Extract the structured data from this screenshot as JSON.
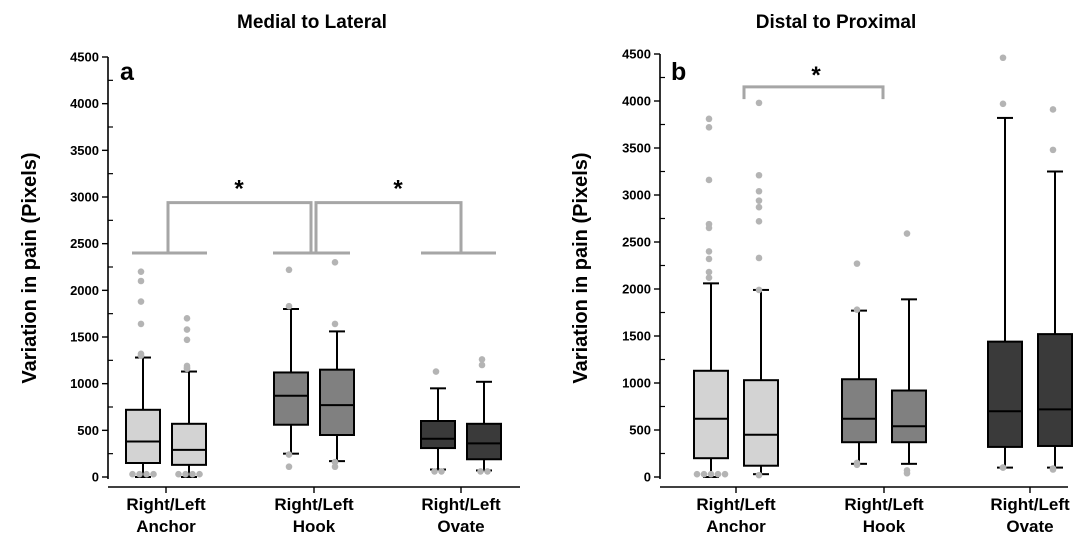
{
  "colors": {
    "light": "#d3d3d3",
    "medium": "#808080",
    "dark": "#3a3a3a",
    "outlier": "#b4b4b4",
    "bracket": "#a6a6a6",
    "axis": "#000000"
  },
  "chart_data": [
    {
      "type": "box",
      "panel_letter": "a",
      "title": "Medial to Lateral",
      "ylabel": "Variation in pain (Pixels)",
      "ylim": [
        0,
        4500
      ],
      "yticks": [
        0,
        500,
        1000,
        1500,
        2000,
        2500,
        3000,
        3500,
        4000,
        4500
      ],
      "categories": [
        {
          "line1": "Right/Left",
          "line2": "Anchor"
        },
        {
          "line1": "Right/Left",
          "line2": "Hook"
        },
        {
          "line1": "Right/Left",
          "line2": "Ovate"
        }
      ],
      "boxes": [
        {
          "group": 0,
          "side": "Right",
          "shade": "light",
          "whisker_low": 0,
          "q1": 150,
          "median": 380,
          "q3": 720,
          "whisker_high": 1280,
          "outliers": [
            2200,
            2100,
            1880,
            1640,
            1320,
            1300,
            30,
            30,
            30,
            30
          ]
        },
        {
          "group": 0,
          "side": "Left",
          "shade": "light",
          "whisker_low": 0,
          "q1": 130,
          "median": 290,
          "q3": 570,
          "whisker_high": 1130,
          "outliers": [
            1700,
            1580,
            1470,
            1190,
            1170,
            1160,
            30,
            30,
            30,
            30
          ]
        },
        {
          "group": 1,
          "side": "Right",
          "shade": "medium",
          "whisker_low": 250,
          "q1": 560,
          "median": 870,
          "q3": 1120,
          "whisker_high": 1800,
          "outliers": [
            2220,
            1830,
            240,
            110
          ]
        },
        {
          "group": 1,
          "side": "Left",
          "shade": "medium",
          "whisker_low": 170,
          "q1": 450,
          "median": 770,
          "q3": 1150,
          "whisker_high": 1560,
          "outliers": [
            2300,
            1640,
            160,
            110
          ]
        },
        {
          "group": 2,
          "side": "Right",
          "shade": "dark",
          "whisker_low": 80,
          "q1": 310,
          "median": 410,
          "q3": 600,
          "whisker_high": 950,
          "outliers": [
            1130,
            60,
            60
          ]
        },
        {
          "group": 2,
          "side": "Left",
          "shade": "dark",
          "whisker_low": 70,
          "q1": 190,
          "median": 360,
          "q3": 570,
          "whisker_high": 1020,
          "outliers": [
            1260,
            1200,
            60,
            60
          ]
        }
      ],
      "significance": [
        {
          "label": "*",
          "from_group": 0,
          "to_group": 1
        },
        {
          "label": "*",
          "from_group": 1,
          "to_group": 2
        }
      ]
    },
    {
      "type": "box",
      "panel_letter": "b",
      "title": "Distal to Proximal",
      "ylabel": "Variation in pain (Pixels)",
      "ylim": [
        0,
        4500
      ],
      "yticks": [
        0,
        500,
        1000,
        1500,
        2000,
        2500,
        3000,
        3500,
        4000,
        4500
      ],
      "categories": [
        {
          "line1": "Right/Left",
          "line2": "Anchor"
        },
        {
          "line1": "Right/Left",
          "line2": "Hook"
        },
        {
          "line1": "Right/Left",
          "line2": "Ovate"
        }
      ],
      "boxes": [
        {
          "group": 0,
          "side": "Right",
          "shade": "light",
          "whisker_low": 0,
          "q1": 200,
          "median": 620,
          "q3": 1130,
          "whisker_high": 2060,
          "outliers": [
            3810,
            3720,
            3160,
            2690,
            2650,
            2400,
            2320,
            2180,
            2120,
            30,
            30,
            30,
            30,
            30
          ]
        },
        {
          "group": 0,
          "side": "Left",
          "shade": "light",
          "whisker_low": 30,
          "q1": 120,
          "median": 450,
          "q3": 1030,
          "whisker_high": 1990,
          "outliers": [
            3980,
            3210,
            3040,
            2940,
            2870,
            2720,
            2330,
            1990,
            20
          ]
        },
        {
          "group": 1,
          "side": "Right",
          "shade": "medium",
          "whisker_low": 140,
          "q1": 370,
          "median": 620,
          "q3": 1040,
          "whisker_high": 1770,
          "outliers": [
            2270,
            1780,
            150,
            130
          ]
        },
        {
          "group": 1,
          "side": "Left",
          "shade": "medium",
          "whisker_low": 140,
          "q1": 370,
          "median": 540,
          "q3": 920,
          "whisker_high": 1890,
          "outliers": [
            2590,
            70,
            40
          ]
        },
        {
          "group": 2,
          "side": "Right",
          "shade": "dark",
          "whisker_low": 100,
          "q1": 320,
          "median": 700,
          "q3": 1440,
          "whisker_high": 3820,
          "outliers": [
            4460,
            3970,
            100,
            100
          ]
        },
        {
          "group": 2,
          "side": "Left",
          "shade": "dark",
          "whisker_low": 100,
          "q1": 330,
          "median": 720,
          "q3": 1520,
          "whisker_high": 3250,
          "outliers": [
            3910,
            3480,
            90,
            80
          ]
        }
      ],
      "significance": [
        {
          "label": "*",
          "from_group": 0,
          "to_group": 1
        }
      ]
    }
  ]
}
